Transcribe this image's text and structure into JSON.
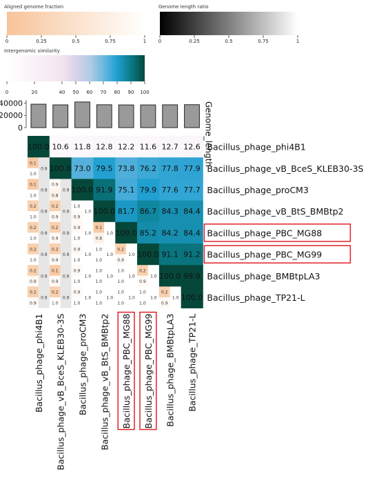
{
  "chart_data": {
    "type": "heatmap",
    "legends": {
      "aligned_fraction": {
        "title": "Aligned genome fraction",
        "ticks": [
          "0",
          "0.25",
          "0.5",
          "0.75",
          "1"
        ],
        "color_low": "#f7c49a",
        "color_high": "#ffffff"
      },
      "length_ratio": {
        "title": "Genome length ratio",
        "ticks": [
          "0",
          "0.25",
          "0.5",
          "0.75",
          "1"
        ],
        "color_low": "#000000",
        "color_high": "#ffffff"
      },
      "similarity": {
        "title": "Intergenomic similarity",
        "ticks": [
          "0",
          "20",
          "40",
          "50",
          "60",
          "70",
          "80",
          "90",
          "100"
        ],
        "tick_values": [
          0,
          20,
          40,
          50,
          60,
          70,
          80,
          90,
          100
        ]
      }
    },
    "bar_axis": {
      "label": "Genome_length",
      "ticks": [
        "40000",
        "20000",
        "0"
      ],
      "tick_values": [
        40000,
        20000,
        0
      ],
      "ylim": [
        0,
        45000
      ]
    },
    "genomes": [
      "Bacillus_phage_phi4B1",
      "Bacillus_phage_vB_BceS_KLEB30-3S",
      "Bacillus_phage_proCM3",
      "Bacillus_phage_vB_BtS_BMBtp2",
      "Bacillus_phage_PBC_MG88",
      "Bacillus_phage_PBC_MG99",
      "Bacillus_phage_BMBtpLA3",
      "Bacillus_phage_TP21-L"
    ],
    "highlighted": [
      "Bacillus_phage_PBC_MG88",
      "Bacillus_phage_PBC_MG99"
    ],
    "highlight_color": "#e0202a",
    "genome_lengths": [
      38200,
      37100,
      41800,
      37300,
      37000,
      37000,
      37200,
      37400
    ],
    "similarity_matrix": [
      [
        "100.0",
        "10.6",
        "11.8",
        "12.8",
        "12.2",
        "11.6",
        "12.7",
        "12.6"
      ],
      [
        "",
        "100.0",
        "73.0",
        "79.5",
        "73.8",
        "76.2",
        "77.8",
        "77.9"
      ],
      [
        "",
        "",
        "100.0",
        "91.9",
        "75.1",
        "79.9",
        "77.6",
        "77.7"
      ],
      [
        "",
        "",
        "",
        "100.0",
        "81.7",
        "86.7",
        "84.3",
        "84.4"
      ],
      [
        "",
        "",
        "",
        "",
        "100.0",
        "85.2",
        "84.2",
        "84.4"
      ],
      [
        "",
        "",
        "",
        "",
        "",
        "100.0",
        "91.1",
        "91.2"
      ],
      [
        "",
        "",
        "",
        "",
        "",
        "",
        "100.0",
        "99.9"
      ],
      [
        "",
        "",
        "",
        "",
        "",
        "",
        "",
        "100.0"
      ]
    ],
    "lower_rows": [
      {
        "row": 1,
        "fractions": [
          "0.1",
          "1.0"
        ],
        "ratios": [
          "0.9"
        ]
      },
      {
        "row": 2,
        "fractions": [
          "0.1",
          "1.0",
          "0.9",
          "0.8"
        ],
        "ratios": [
          "0.9",
          "0.9"
        ]
      },
      {
        "row": 3,
        "fractions": [
          "0.2",
          "1.0",
          "0.2",
          "0.9",
          "1.0",
          "0.9"
        ],
        "ratios": [
          "0.9",
          "0.9",
          "1.0"
        ]
      },
      {
        "row": 4,
        "fractions": [
          "0.2",
          "1.0",
          "0.2",
          "0.9",
          "0.9",
          "1.0",
          "0.1",
          "0.8"
        ],
        "ratios": [
          "0.9",
          "0.9",
          "1.0",
          "1.0"
        ]
      },
      {
        "row": 5,
        "fractions": [
          "0.2",
          "1.0",
          "0.2",
          "0.9",
          "0.9",
          "1.0",
          "1.0",
          "1.0",
          "0.2",
          "0.9"
        ],
        "ratios": [
          "0.9",
          "0.9",
          "1.0",
          "1.0",
          "1.0"
        ]
      },
      {
        "row": 6,
        "fractions": [
          "0.2",
          "0.9",
          "0.1",
          "0.9",
          "0.9",
          "1.0",
          "1.0",
          "1.0",
          "1.0",
          "1.0",
          "0.2",
          "0.9"
        ],
        "ratios": [
          "0.9",
          "0.9",
          "1.0",
          "1.0",
          "1.0",
          "1.0"
        ]
      },
      {
        "row": 7,
        "fractions": [
          "0.2",
          "0.9",
          "0.2",
          "1.0",
          "0.9",
          "1.0",
          "1.0",
          "1.0",
          "1.0",
          "1.0",
          "1.0",
          "1.0",
          "0.2",
          "0.9"
        ],
        "ratios": [
          "0.9",
          "0.9",
          "1.0",
          "1.0",
          "1.0",
          "1.0",
          "1.0"
        ]
      }
    ]
  }
}
